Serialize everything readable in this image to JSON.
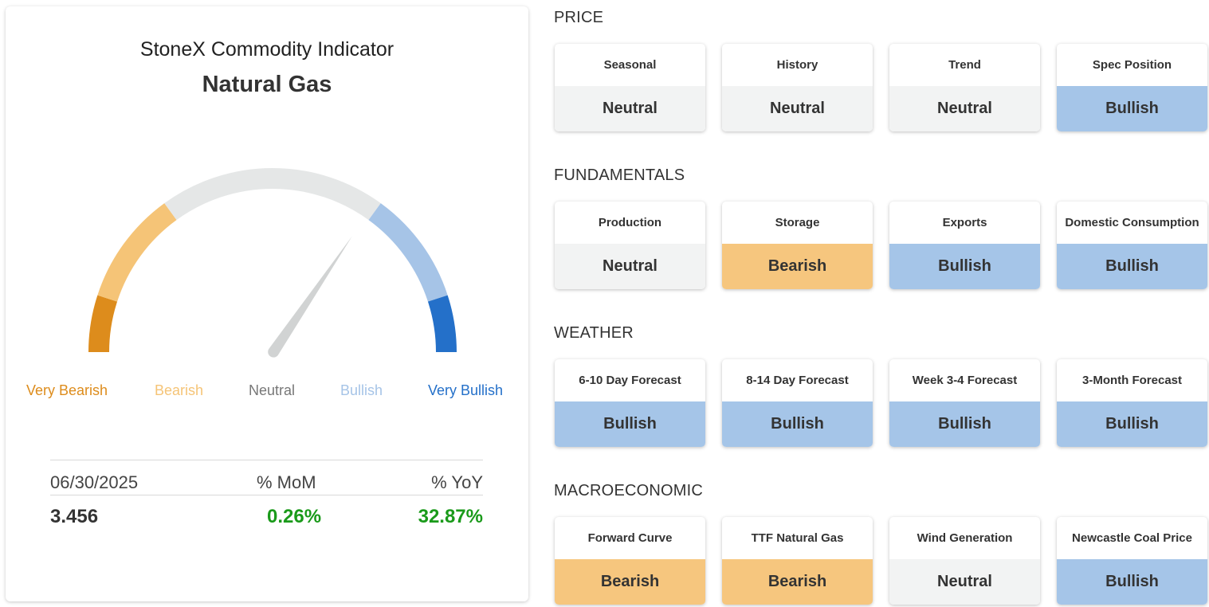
{
  "gauge_card": {
    "title": "StoneX Commodity Indicator",
    "commodity": "Natural Gas",
    "needle_level": 0.69,
    "labels": [
      {
        "text": "Very Bearish",
        "color": "#dd8c1c"
      },
      {
        "text": "Bearish",
        "color": "#f5c477"
      },
      {
        "text": "Neutral",
        "color": "#777777"
      },
      {
        "text": "Bullish",
        "color": "#a6c4e7"
      },
      {
        "text": "Very Bullish",
        "color": "#2470c9"
      }
    ],
    "segment_colors": [
      "#dd8c1c",
      "#f5c477",
      "#e5e7e7",
      "#a6c4e7",
      "#2470c9"
    ],
    "stats": {
      "date": "06/30/2025",
      "mom_label": "% MoM",
      "yoy_label": "% YoY",
      "price": "3.456",
      "mom": "0.26%",
      "yoy": "32.87%",
      "positive_color": "#1a9a1a"
    }
  },
  "sections": [
    {
      "title": "PRICE",
      "items": [
        {
          "label": "Seasonal",
          "value": "Neutral"
        },
        {
          "label": "History",
          "value": "Neutral"
        },
        {
          "label": "Trend",
          "value": "Neutral"
        },
        {
          "label": "Spec Position",
          "value": "Bullish"
        }
      ]
    },
    {
      "title": "FUNDAMENTALS",
      "items": [
        {
          "label": "Production",
          "value": "Neutral"
        },
        {
          "label": "Storage",
          "value": "Bearish"
        },
        {
          "label": "Exports",
          "value": "Bullish"
        },
        {
          "label": "Domestic Consumption",
          "value": "Bullish"
        }
      ]
    },
    {
      "title": "WEATHER",
      "items": [
        {
          "label": "6-10 Day Forecast",
          "value": "Bullish"
        },
        {
          "label": "8-14 Day Forecast",
          "value": "Bullish"
        },
        {
          "label": "Week 3-4 Forecast",
          "value": "Bullish"
        },
        {
          "label": "3-Month Forecast",
          "value": "Bullish"
        }
      ]
    },
    {
      "title": "MACROECONOMIC",
      "items": [
        {
          "label": "Forward Curve",
          "value": "Bearish"
        },
        {
          "label": "TTF Natural Gas",
          "value": "Bearish"
        },
        {
          "label": "Wind Generation",
          "value": "Neutral"
        },
        {
          "label": "Newcastle Coal Price",
          "value": "Bullish"
        }
      ]
    }
  ]
}
